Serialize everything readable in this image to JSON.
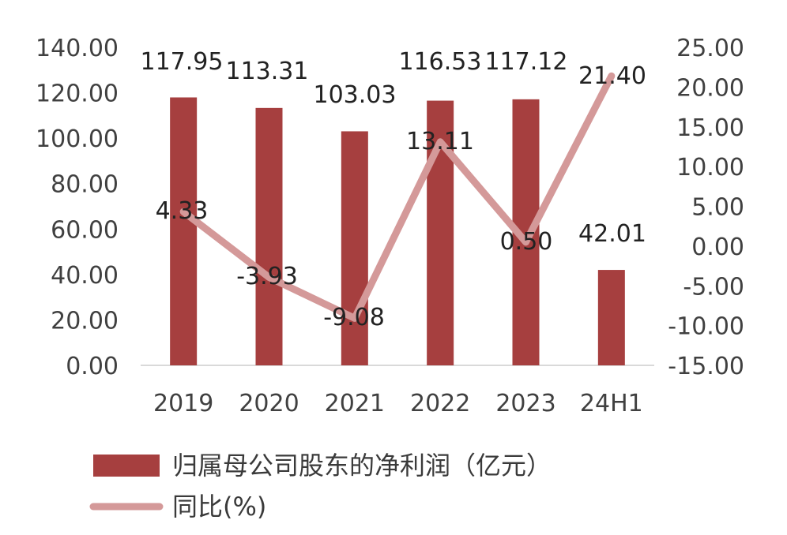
{
  "chart_data": {
    "type": "bar",
    "categories": [
      "2019",
      "2020",
      "2021",
      "2022",
      "2023",
      "24H1"
    ],
    "series": [
      {
        "name": "归属母公司股东的净利润（亿元）",
        "chart_type": "bar",
        "axis": "left",
        "values": [
          117.95,
          113.31,
          103.03,
          116.53,
          117.12,
          42.01
        ],
        "labels": [
          "117.95",
          "113.31",
          "103.03",
          "116.53",
          "117.12",
          "42.01"
        ]
      },
      {
        "name": "同比(%)",
        "chart_type": "line",
        "axis": "right",
        "values": [
          4.33,
          -3.93,
          -9.08,
          13.11,
          0.5,
          21.4
        ],
        "labels": [
          "4.33",
          "-3.93",
          "-9.08",
          "13.11",
          "0.50",
          "21.40"
        ]
      }
    ],
    "left_axis": {
      "ylim": [
        0,
        140
      ],
      "ticks": [
        "0.00",
        "20.00",
        "40.00",
        "60.00",
        "80.00",
        "100.00",
        "120.00",
        "140.00"
      ]
    },
    "right_axis": {
      "ylim": [
        -15,
        25
      ],
      "ticks": [
        "-15.00",
        "-10.00",
        "-5.00",
        "0.00",
        "5.00",
        "10.00",
        "15.00",
        "20.00",
        "25.00"
      ]
    },
    "title": "",
    "xlabel": "",
    "ylabel": "",
    "grid": false,
    "legend_position": "bottom-left",
    "colors": {
      "bar": "#A63F3F",
      "line": "#D49999",
      "axis_line": "#D9D9D9",
      "tick_text": "#404040",
      "label_text": "#222222"
    }
  }
}
